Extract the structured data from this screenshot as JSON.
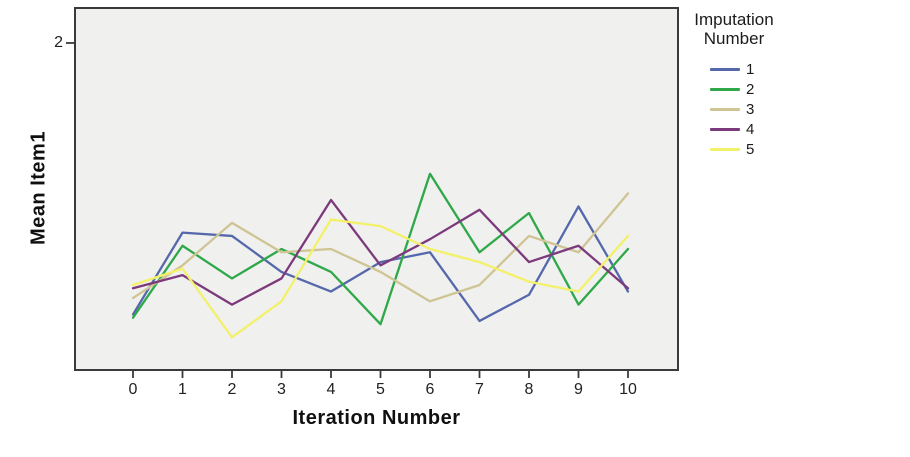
{
  "chart_data": {
    "type": "line",
    "title": "",
    "xlabel": "Iteration Number",
    "ylabel": "Mean Item1",
    "x": [
      0,
      1,
      2,
      3,
      4,
      5,
      6,
      7,
      8,
      9,
      10
    ],
    "x_tick_labels": [
      "0",
      "1",
      "2",
      "3",
      "4",
      "5",
      "6",
      "7",
      "8",
      "9",
      "10"
    ],
    "ylim": [
      1.0,
      2.107
    ],
    "y_ticks": [
      {
        "value": 2,
        "label": "2"
      }
    ],
    "grid": false,
    "plot_bg_color": "#f0f0ee",
    "axis_color": "#3a3a3a",
    "legend": {
      "position": "right",
      "title_lines": [
        "Imputation",
        "Number"
      ]
    },
    "series": [
      {
        "name": "1",
        "color": "#5568ac",
        "values": [
          1.17,
          1.42,
          1.41,
          1.3,
          1.24,
          1.33,
          1.36,
          1.15,
          1.23,
          1.5,
          1.24
        ]
      },
      {
        "name": "2",
        "color": "#2fa84a",
        "values": [
          1.16,
          1.38,
          1.28,
          1.37,
          1.3,
          1.14,
          1.6,
          1.36,
          1.48,
          1.2,
          1.37
        ]
      },
      {
        "name": "3",
        "color": "#cfc493",
        "values": [
          1.22,
          1.32,
          1.45,
          1.36,
          1.37,
          1.3,
          1.21,
          1.26,
          1.41,
          1.36,
          1.54
        ]
      },
      {
        "name": "4",
        "color": "#7c3a7d",
        "values": [
          1.25,
          1.29,
          1.2,
          1.28,
          1.52,
          1.32,
          1.4,
          1.49,
          1.33,
          1.38,
          1.25
        ]
      },
      {
        "name": "5",
        "color": "#f3f06a",
        "values": [
          1.26,
          1.31,
          1.1,
          1.21,
          1.46,
          1.44,
          1.37,
          1.33,
          1.27,
          1.24,
          1.41
        ]
      }
    ]
  }
}
